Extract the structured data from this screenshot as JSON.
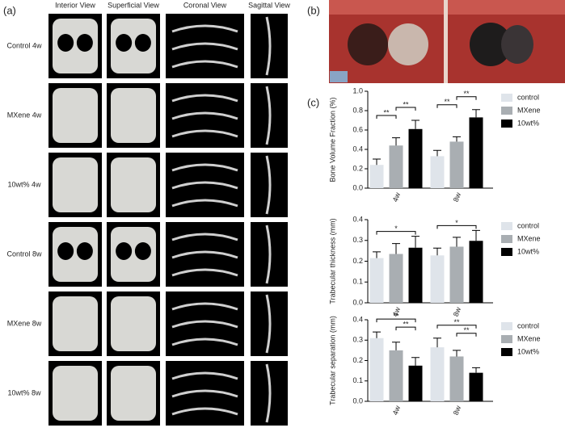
{
  "panels": {
    "a": "(a)",
    "b": "(b)",
    "c": "(c)"
  },
  "columns": [
    "Interior View",
    "Superficial View",
    "Coronal View",
    "Sagittal View"
  ],
  "rows": [
    "Control 4w",
    "MXene 4w",
    "10wt% 4w",
    "Control 8w",
    "MXene 8w",
    "10wt% 8w"
  ],
  "chart_data": [
    {
      "type": "bar",
      "y_label": "Bone Volume Fraction (%)",
      "categories": [
        "4w",
        "8w"
      ],
      "series": [
        {
          "name": "control",
          "color": "#dfe4ea",
          "values": [
            0.24,
            0.33
          ],
          "errors": [
            0.06,
            0.06
          ]
        },
        {
          "name": "MXene",
          "color": "#a9aeb2",
          "values": [
            0.44,
            0.48
          ],
          "errors": [
            0.08,
            0.05
          ]
        },
        {
          "name": "10wt%",
          "color": "#000000",
          "values": [
            0.61,
            0.73
          ],
          "errors": [
            0.09,
            0.08
          ]
        }
      ],
      "ylim": [
        0,
        1
      ],
      "yticks": [
        {
          "value": 0,
          "label": "0.0"
        },
        0.2,
        0.4,
        0.6,
        0.8,
        {
          "value": 1,
          "label": "1.0"
        }
      ],
      "annotations": [
        "**",
        "**",
        "**",
        "**"
      ],
      "legend": "right"
    },
    {
      "type": "bar",
      "y_label": "Trabecular thickness (mm)",
      "categories": [
        "4w",
        "8w"
      ],
      "series": [
        {
          "name": "control",
          "color": "#dfe4ea",
          "values": [
            0.215,
            0.228
          ],
          "errors": [
            0.03,
            0.035
          ]
        },
        {
          "name": "MXene",
          "color": "#a9aeb2",
          "values": [
            0.235,
            0.27
          ],
          "errors": [
            0.05,
            0.045
          ]
        },
        {
          "name": "10wt%",
          "color": "#000000",
          "values": [
            0.265,
            0.298
          ],
          "errors": [
            0.055,
            0.05
          ]
        }
      ],
      "ylim": [
        0,
        0.4
      ],
      "yticks": [
        {
          "value": 0,
          "label": "0.0"
        },
        0.1,
        0.2,
        0.3,
        0.4
      ],
      "annotations": [
        "*",
        "*"
      ],
      "legend": "right"
    },
    {
      "type": "bar",
      "y_label": "Trabecular separation (mm)",
      "categories": [
        "4w",
        "8w"
      ],
      "series": [
        {
          "name": "control",
          "color": "#dfe4ea",
          "values": [
            0.31,
            0.265
          ],
          "errors": [
            0.03,
            0.045
          ]
        },
        {
          "name": "MXene",
          "color": "#a9aeb2",
          "values": [
            0.25,
            0.22
          ],
          "errors": [
            0.04,
            0.03
          ]
        },
        {
          "name": "10wt%",
          "color": "#000000",
          "values": [
            0.175,
            0.14
          ],
          "errors": [
            0.04,
            0.025
          ]
        }
      ],
      "ylim": [
        0,
        0.4
      ],
      "yticks": [
        {
          "value": 0,
          "label": "0.0"
        },
        0.1,
        0.2,
        0.3,
        0.4
      ],
      "annotations": [
        "**",
        "**",
        "**",
        "**"
      ],
      "legend": "right"
    }
  ]
}
